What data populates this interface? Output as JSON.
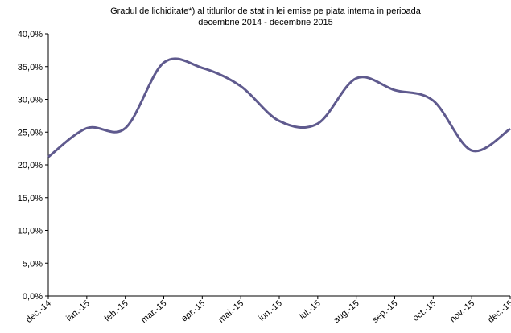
{
  "chart_data": {
    "type": "line",
    "title": "Gradul de lichiditate*) al titlurilor de stat in lei emise pe piata interna  in perioada",
    "subtitle": "decembrie 2014 - decembrie 2015",
    "categories": [
      "dec.-14",
      "ian.-15",
      "feb.-15",
      "mar.-15",
      "apr.-15",
      "mai.-15",
      "iun.-15",
      "iul.-15",
      "aug.-15",
      "sep.-15",
      "oct.-15",
      "nov.-15",
      "dec.-15"
    ],
    "series": [
      {
        "name": "Gradul de lichiditate",
        "color": "#5f5a8e",
        "values": [
          21.2,
          25.6,
          25.6,
          35.6,
          34.8,
          32.0,
          26.7,
          26.3,
          33.2,
          31.4,
          29.8,
          22.2,
          25.5
        ]
      }
    ],
    "ylim": [
      0,
      40
    ],
    "yticks": [
      {
        "value": 0,
        "label": "0,0%"
      },
      {
        "value": 5,
        "label": "5,0%"
      },
      {
        "value": 10,
        "label": "10,0%"
      },
      {
        "value": 15,
        "label": "15,0%"
      },
      {
        "value": 20,
        "label": "20,0%"
      },
      {
        "value": 25,
        "label": "25,0%"
      },
      {
        "value": 30,
        "label": "30,0%"
      },
      {
        "value": 35,
        "label": "35,0%"
      },
      {
        "value": 40,
        "label": "40,0%"
      }
    ],
    "grid": false
  }
}
